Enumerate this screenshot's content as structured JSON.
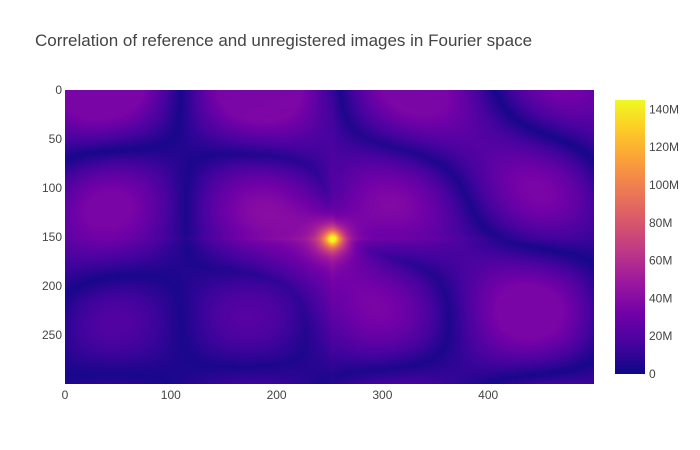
{
  "chart_data": {
    "type": "heatmap",
    "title": "Correlation of reference and unregistered images in Fourier space",
    "xlabel": "",
    "ylabel": "",
    "x_range": [
      0,
      500
    ],
    "y_range": [
      0,
      300
    ],
    "y_reversed": true,
    "x_ticks": [
      "0",
      "100",
      "200",
      "300",
      "400"
    ],
    "x_tick_values": [
      0,
      100,
      200,
      300,
      400
    ],
    "y_ticks": [
      "0",
      "50",
      "100",
      "150",
      "200",
      "250"
    ],
    "y_tick_values": [
      0,
      50,
      100,
      150,
      200,
      250
    ],
    "colorbar": {
      "min": 0,
      "max": 145000000,
      "tick_values": [
        0,
        20000000,
        40000000,
        60000000,
        80000000,
        100000000,
        120000000,
        140000000
      ],
      "tick_labels": [
        "0",
        "20M",
        "40M",
        "60M",
        "80M",
        "100M",
        "120M",
        "140M"
      ],
      "colorscale": [
        "#0d0887",
        "#46039f",
        "#7201a8",
        "#9c179e",
        "#bd3786",
        "#d8576b",
        "#ed7953",
        "#fb9f3a",
        "#fdca26",
        "#f0f921"
      ]
    },
    "peak": {
      "x": 253,
      "y": 152,
      "value": 145000000
    },
    "background_level": 22000000,
    "grid": false,
    "legend": "colorbar-right"
  }
}
